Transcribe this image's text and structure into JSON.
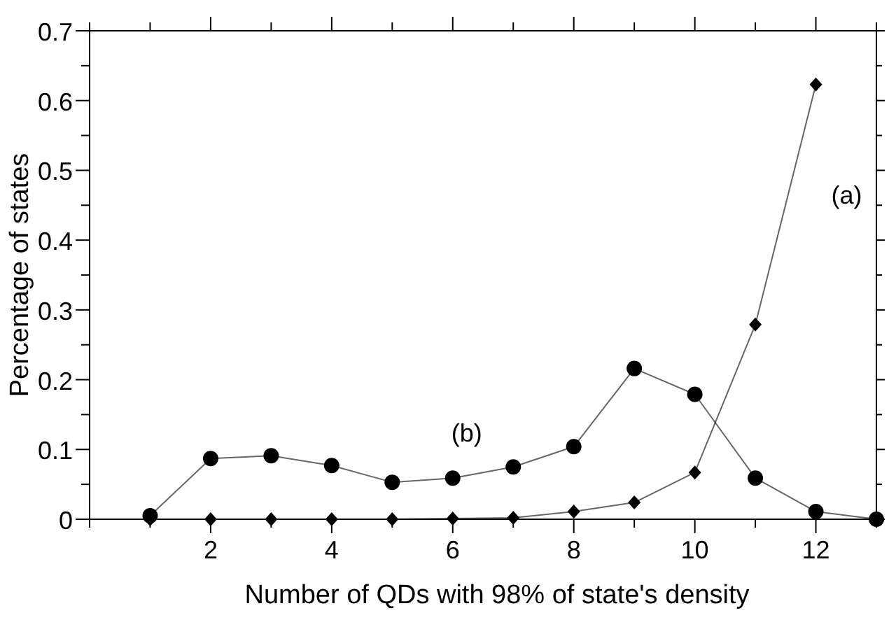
{
  "chart_data": {
    "type": "line",
    "xlabel": "Number of QDs with 98% of state's density",
    "ylabel": "Percentage of states",
    "xlim": [
      0,
      13
    ],
    "ylim": [
      0,
      0.7
    ],
    "xticks": [
      {
        "value": 0,
        "label": null
      },
      {
        "value": 1,
        "label": null
      },
      2,
      {
        "value": 3,
        "label": null
      },
      4,
      {
        "value": 5,
        "label": null
      },
      6,
      {
        "value": 7,
        "label": null
      },
      8,
      {
        "value": 9,
        "label": null
      },
      10,
      {
        "value": 11,
        "label": null
      },
      12,
      {
        "value": 13,
        "label": null
      }
    ],
    "yticks": [
      0,
      {
        "value": 0.05,
        "label": null
      },
      0.1,
      {
        "value": 0.15,
        "label": null
      },
      0.2,
      {
        "value": 0.25,
        "label": null
      },
      0.3,
      {
        "value": 0.35,
        "label": null
      },
      0.4,
      {
        "value": 0.45,
        "label": null
      },
      0.5,
      {
        "value": 0.55,
        "label": null
      },
      0.6,
      {
        "value": 0.65,
        "label": null
      },
      0.7
    ],
    "grid": false,
    "series": [
      {
        "name": "(a)",
        "color": "#000000",
        "marker": "diamond",
        "x": [
          1,
          2,
          3,
          4,
          5,
          6,
          7,
          8,
          9,
          10,
          11,
          12
        ],
        "values": [
          0,
          0,
          0,
          0,
          0,
          0.001,
          0.002,
          0.011,
          0.024,
          0.067,
          0.279,
          0.623
        ]
      },
      {
        "name": "(b)",
        "color": "#000000",
        "marker": "circle",
        "x": [
          1,
          2,
          3,
          4,
          5,
          6,
          7,
          8,
          9,
          10,
          11,
          12,
          13
        ],
        "values": [
          0.005,
          0.087,
          0.091,
          0.077,
          0.053,
          0.059,
          0.075,
          0.104,
          0.216,
          0.179,
          0.059,
          0.011,
          0
        ]
      }
    ]
  }
}
